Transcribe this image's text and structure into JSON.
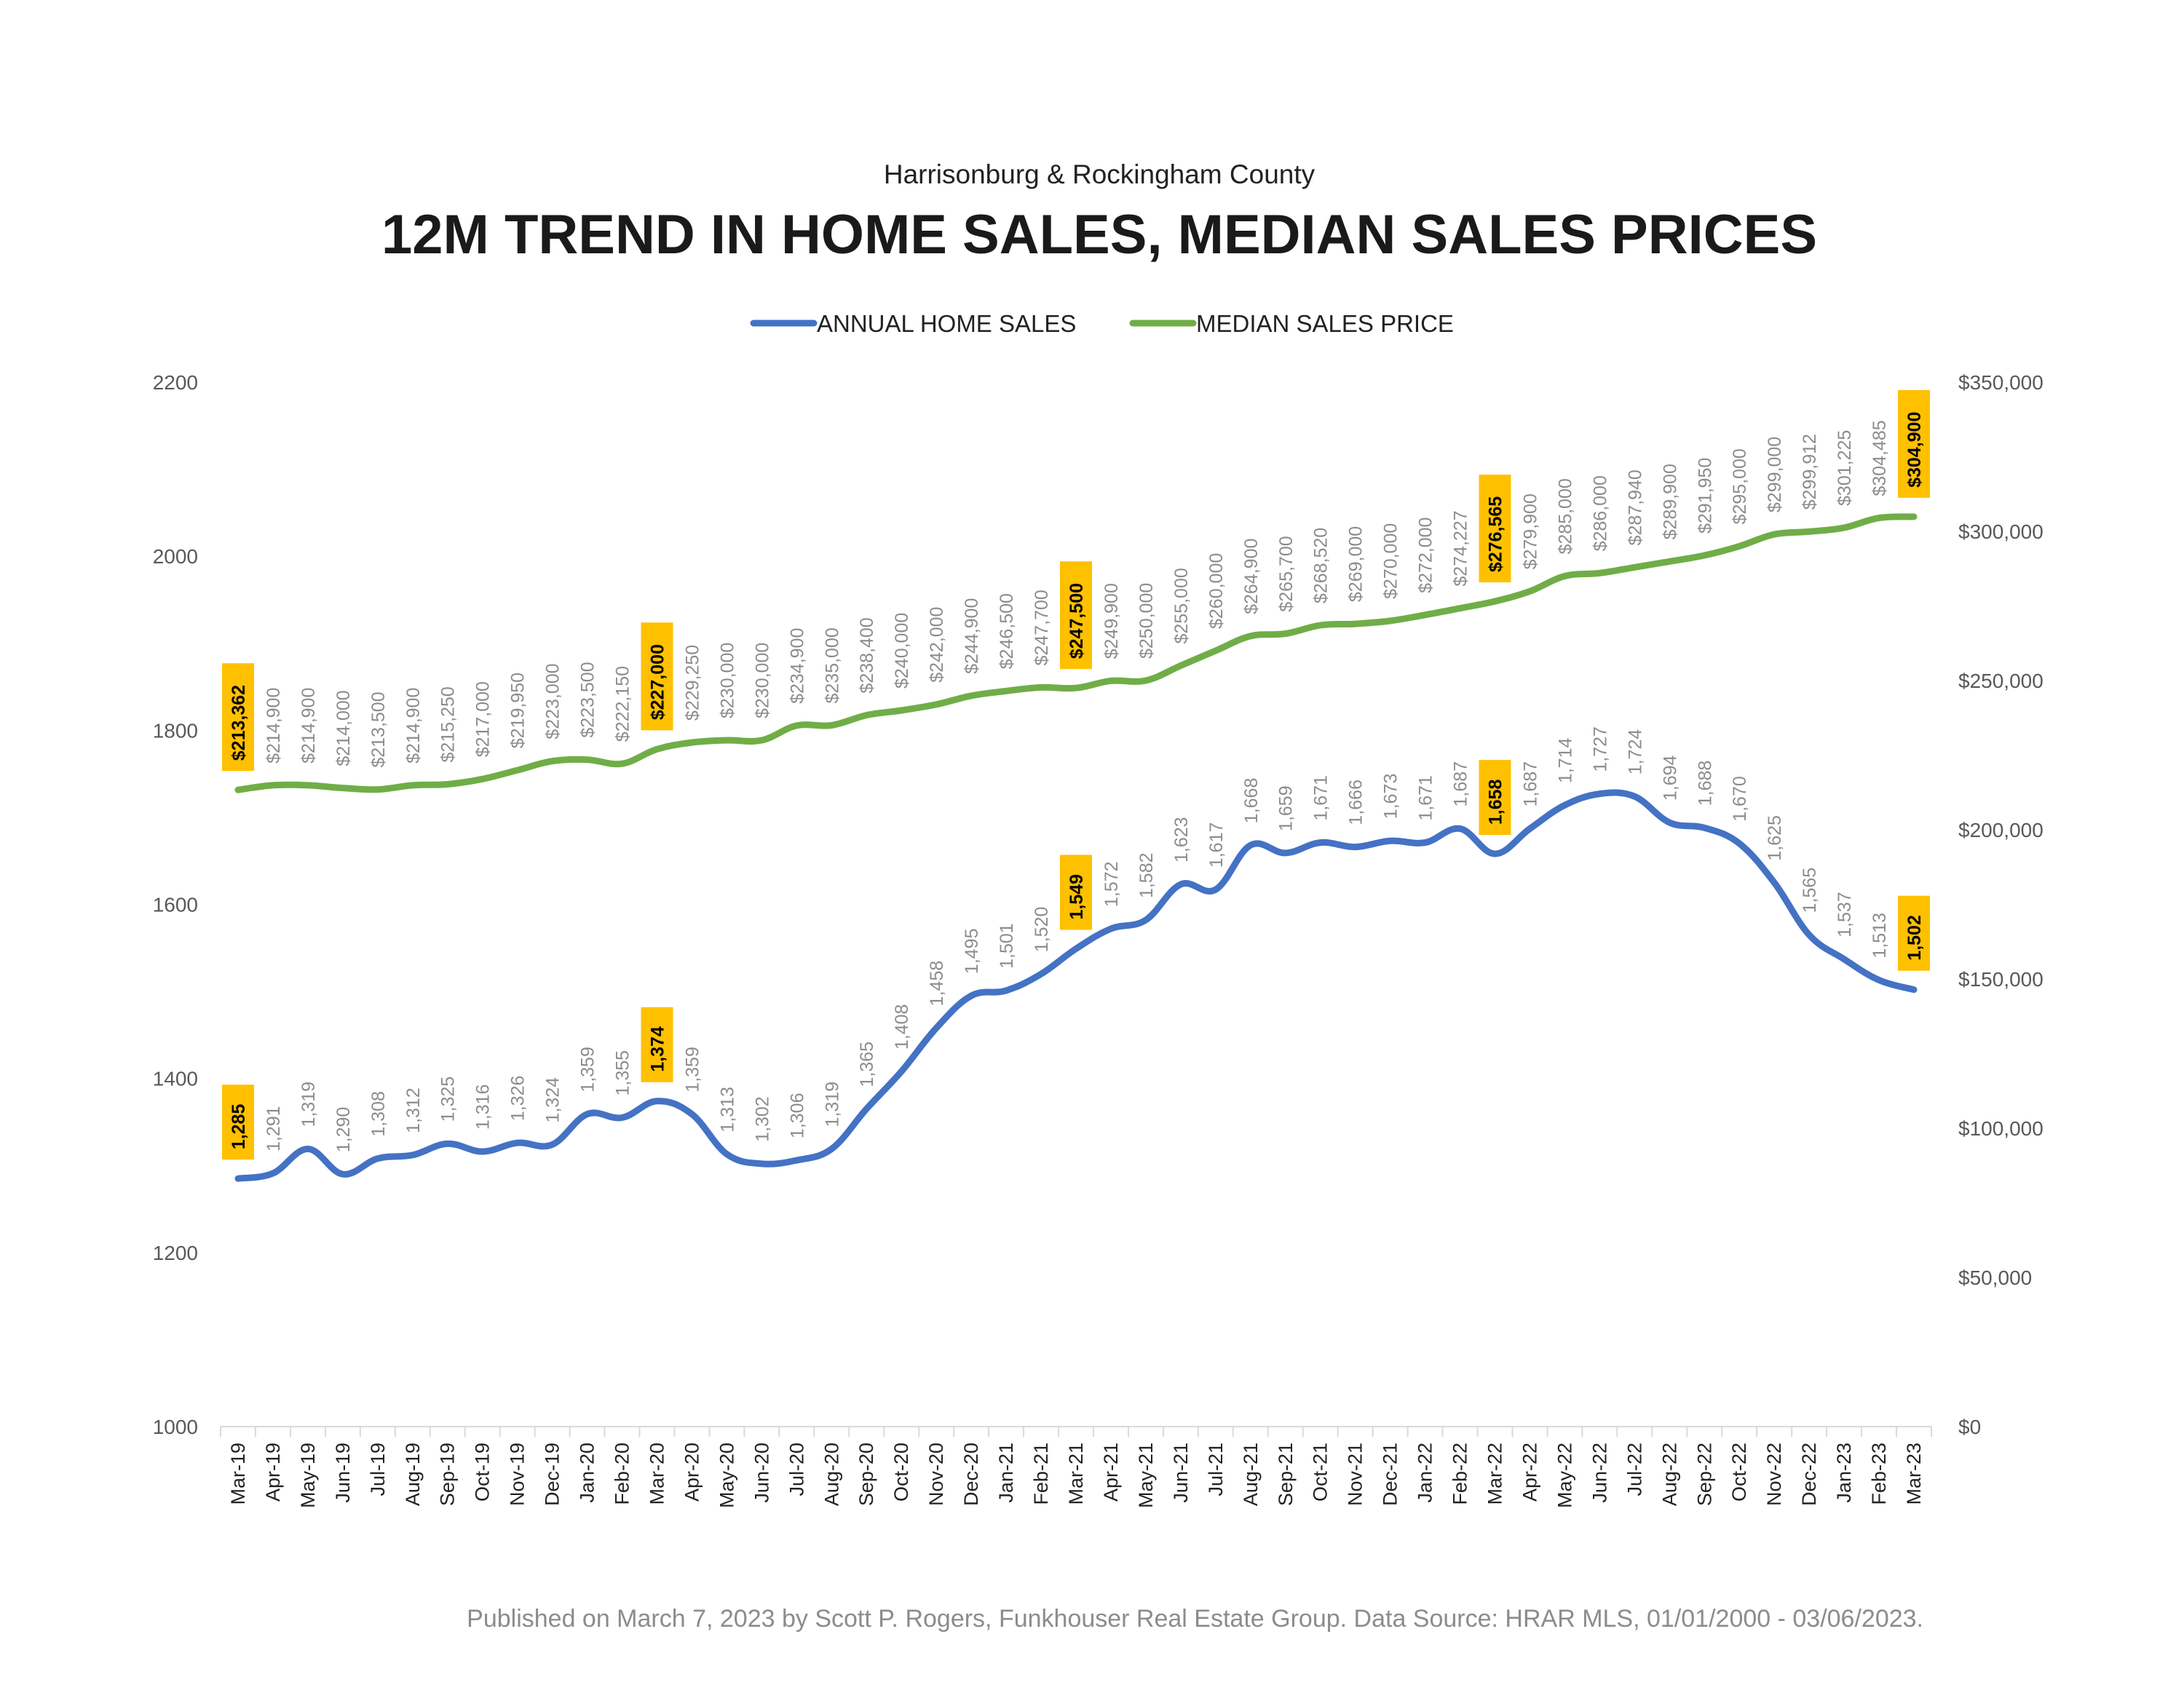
{
  "chart_data": {
    "type": "line",
    "subtitle": "Harrisonburg & Rockingham County",
    "title": "12M TREND IN HOME SALES, MEDIAN SALES PRICES",
    "legend_position": "top",
    "grid": false,
    "categories": [
      "Mar-19",
      "Apr-19",
      "May-19",
      "Jun-19",
      "Jul-19",
      "Aug-19",
      "Sep-19",
      "Oct-19",
      "Nov-19",
      "Dec-19",
      "Jan-20",
      "Feb-20",
      "Mar-20",
      "Apr-20",
      "May-20",
      "Jun-20",
      "Jul-20",
      "Aug-20",
      "Sep-20",
      "Oct-20",
      "Nov-20",
      "Dec-20",
      "Jan-21",
      "Feb-21",
      "Mar-21",
      "Apr-21",
      "May-21",
      "Jun-21",
      "Jul-21",
      "Aug-21",
      "Sep-21",
      "Oct-21",
      "Nov-21",
      "Dec-21",
      "Jan-22",
      "Feb-22",
      "Mar-22",
      "Apr-22",
      "May-22",
      "Jun-22",
      "Jul-22",
      "Aug-22",
      "Sep-22",
      "Oct-22",
      "Nov-22",
      "Dec-22",
      "Jan-23",
      "Feb-23",
      "Mar-23"
    ],
    "y_left": {
      "ylim": [
        1000,
        2200
      ],
      "ticks": [
        "1000",
        "1200",
        "1400",
        "1600",
        "1800",
        "2000",
        "2200"
      ]
    },
    "y_right": {
      "ylim": [
        0,
        350000
      ],
      "ticks": [
        "$0",
        "$50,000",
        "$100,000",
        "$150,000",
        "$200,000",
        "$250,000",
        "$300,000",
        "$350,000"
      ]
    },
    "series": [
      {
        "name": "ANNUAL HOME SALES",
        "axis": "left",
        "color": "#4472C4",
        "values": [
          1285,
          1291,
          1319,
          1290,
          1308,
          1312,
          1325,
          1316,
          1326,
          1324,
          1359,
          1355,
          1374,
          1359,
          1313,
          1302,
          1306,
          1319,
          1365,
          1408,
          1458,
          1495,
          1501,
          1520,
          1549,
          1572,
          1582,
          1623,
          1617,
          1668,
          1659,
          1671,
          1666,
          1673,
          1671,
          1687,
          1658,
          1687,
          1714,
          1727,
          1724,
          1694,
          1688,
          1670,
          1625,
          1565,
          1537,
          1513,
          1502
        ],
        "labels": [
          "1,285",
          "1,291",
          "1,319",
          "1,290",
          "1,308",
          "1,312",
          "1,325",
          "1,316",
          "1,326",
          "1,324",
          "1,359",
          "1,355",
          "1,374",
          "1,359",
          "1,313",
          "1,302",
          "1,306",
          "1,319",
          "1,365",
          "1,408",
          "1,458",
          "1,495",
          "1,501",
          "1,520",
          "1,549",
          "1,572",
          "1,582",
          "1,623",
          "1,617",
          "1,668",
          "1,659",
          "1,671",
          "1,666",
          "1,673",
          "1,671",
          "1,687",
          "1,658",
          "1,687",
          "1,714",
          "1,727",
          "1,724",
          "1,694",
          "1,688",
          "1,670",
          "1,625",
          "1,565",
          "1,537",
          "1,513",
          "1,502"
        ],
        "highlighted": [
          0,
          12,
          24,
          36,
          48
        ]
      },
      {
        "name": "MEDIAN SALES PRICE",
        "axis": "right",
        "color": "#70AD47",
        "values": [
          213362,
          214900,
          214900,
          214000,
          213500,
          214900,
          215250,
          217000,
          219950,
          223000,
          223500,
          222150,
          227000,
          229250,
          230000,
          230000,
          234900,
          235000,
          238400,
          240000,
          242000,
          244900,
          246500,
          247700,
          247500,
          249900,
          250000,
          255000,
          260000,
          264900,
          265700,
          268520,
          269000,
          270000,
          272000,
          274227,
          276565,
          279900,
          285000,
          286000,
          287940,
          289900,
          291950,
          295000,
          299000,
          299912,
          301225,
          304485,
          304900
        ],
        "labels": [
          "$213,362",
          "$214,900",
          "$214,900",
          "$214,000",
          "$213,500",
          "$214,900",
          "$215,250",
          "$217,000",
          "$219,950",
          "$223,000",
          "$223,500",
          "$222,150",
          "$227,000",
          "$229,250",
          "$230,000",
          "$230,000",
          "$234,900",
          "$235,000",
          "$238,400",
          "$240,000",
          "$242,000",
          "$244,900",
          "$246,500",
          "$247,700",
          "$247,500",
          "$249,900",
          "$250,000",
          "$255,000",
          "$260,000",
          "$264,900",
          "$265,700",
          "$268,520",
          "$269,000",
          "$270,000",
          "$272,000",
          "$274,227",
          "$276,565",
          "$279,900",
          "$285,000",
          "$286,000",
          "$287,940",
          "$289,900",
          "$291,950",
          "$295,000",
          "$299,000",
          "$299,912",
          "$301,225",
          "$304,485",
          "$304,900"
        ],
        "highlighted": [
          0,
          12,
          24,
          36,
          48
        ]
      }
    ],
    "highlight_color": "#FFC000"
  },
  "footer": "Published on March 7, 2023 by Scott P. Rogers, Funkhouser Real Estate Group. Data Source: HRAR MLS, 01/01/2000 - 03/06/2023."
}
